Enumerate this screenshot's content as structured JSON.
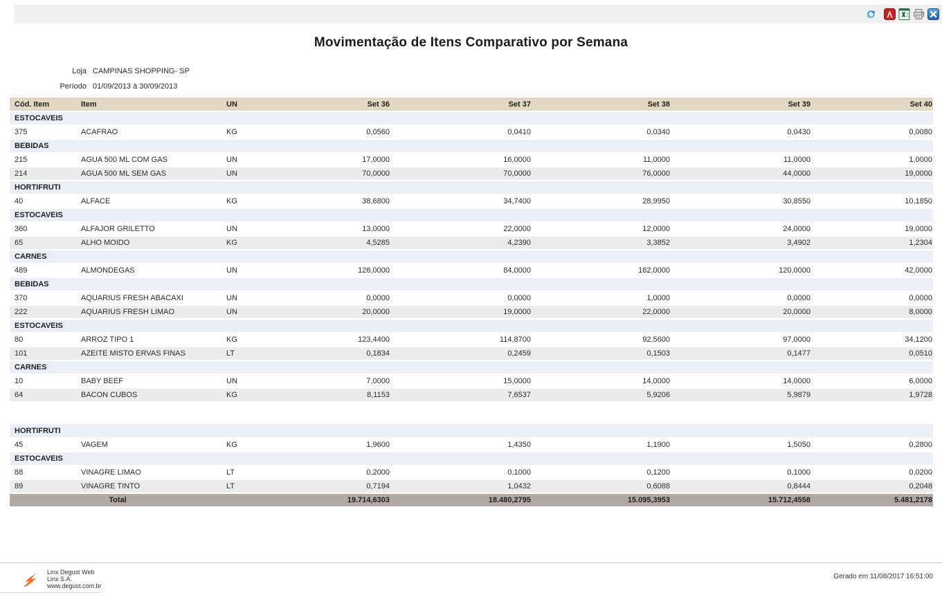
{
  "toolbar": {
    "icons": [
      {
        "name": "refresh"
      },
      {
        "name": "export-pdf"
      },
      {
        "name": "export-excel"
      },
      {
        "name": "print"
      },
      {
        "name": "close"
      }
    ]
  },
  "title": "Movimentação de Itens Comparativo por Semana",
  "meta": {
    "loja_label": "Loja",
    "loja_value": "CAMPINAS SHOPPING- SP",
    "periodo_label": "Período",
    "periodo_value": "01/09/2013 à 30/09/2013"
  },
  "table": {
    "columns": [
      "Cód. Item",
      "Item",
      "UN",
      "Set 36",
      "Set 37",
      "Set 38",
      "Set 39",
      "Set 40"
    ],
    "rows": [
      {
        "type": "category",
        "label": "ESTOCAVEIS"
      },
      {
        "type": "item",
        "cod": "375",
        "item": "ACAFRAO",
        "un": "KG",
        "values": [
          "0,0560",
          "0,0410",
          "0,0340",
          "0,0430",
          "0,0080"
        ]
      },
      {
        "type": "category",
        "label": "BEBIDAS"
      },
      {
        "type": "item",
        "cod": "215",
        "item": "AGUA 500 ML COM GAS",
        "un": "UN",
        "values": [
          "17,0000",
          "16,0000",
          "11,0000",
          "11,0000",
          "1,0000"
        ]
      },
      {
        "type": "item",
        "cod": "214",
        "item": "AGUA 500 ML SEM GAS",
        "un": "UN",
        "values": [
          "70,0000",
          "70,0000",
          "76,0000",
          "44,0000",
          "19,0000"
        ]
      },
      {
        "type": "category",
        "label": "HORTIFRUTI"
      },
      {
        "type": "item",
        "cod": "40",
        "item": "ALFACE",
        "un": "KG",
        "values": [
          "38,6800",
          "34,7400",
          "28,9950",
          "30,8550",
          "10,1850"
        ]
      },
      {
        "type": "category",
        "label": "ESTOCAVEIS"
      },
      {
        "type": "item",
        "cod": "360",
        "item": "ALFAJOR GRILETTO",
        "un": "UN",
        "values": [
          "13,0000",
          "22,0000",
          "12,0000",
          "24,0000",
          "19,0000"
        ]
      },
      {
        "type": "item",
        "cod": "65",
        "item": "ALHO MOIDO",
        "un": "KG",
        "values": [
          "4,5285",
          "4,2390",
          "3,3852",
          "3,4902",
          "1,2304"
        ]
      },
      {
        "type": "category",
        "label": "CARNES"
      },
      {
        "type": "item",
        "cod": "489",
        "item": "ALMONDEGAS",
        "un": "UN",
        "values": [
          "126,0000",
          "84,0000",
          "162,0000",
          "120,0000",
          "42,0000"
        ]
      },
      {
        "type": "category",
        "label": "BEBIDAS"
      },
      {
        "type": "item",
        "cod": "370",
        "item": "AQUARIUS FRESH ABACAXI",
        "un": "UN",
        "values": [
          "0,0000",
          "0,0000",
          "1,0000",
          "0,0000",
          "0,0000"
        ]
      },
      {
        "type": "item",
        "cod": "222",
        "item": "AQUARIUS FRESH LIMAO",
        "un": "UN",
        "values": [
          "20,0000",
          "19,0000",
          "22,0000",
          "20,0000",
          "8,0000"
        ]
      },
      {
        "type": "category",
        "label": "ESTOCAVEIS"
      },
      {
        "type": "item",
        "cod": "80",
        "item": "ARROZ TIPO 1",
        "un": "KG",
        "values": [
          "123,4400",
          "114,8700",
          "92,5600",
          "97,0000",
          "34,1200"
        ]
      },
      {
        "type": "item",
        "cod": "101",
        "item": "AZEITE MISTO ERVAS FINAS",
        "un": "LT",
        "values": [
          "0,1834",
          "0,2459",
          "0,1503",
          "0,1477",
          "0,0510"
        ]
      },
      {
        "type": "category",
        "label": "CARNES"
      },
      {
        "type": "item",
        "cod": "10",
        "item": "BABY BEEF",
        "un": "UN",
        "values": [
          "7,0000",
          "15,0000",
          "14,0000",
          "14,0000",
          "6,0000"
        ]
      },
      {
        "type": "item",
        "cod": "64",
        "item": "BACON CUBOS",
        "un": "KG",
        "values": [
          "8,1153",
          "7,6537",
          "5,9206",
          "5,9879",
          "1,9728"
        ]
      },
      {
        "type": "gap"
      },
      {
        "type": "category",
        "label": "HORTIFRUTI"
      },
      {
        "type": "item",
        "cod": "45",
        "item": "VAGEM",
        "un": "KG",
        "values": [
          "1,9600",
          "1,4350",
          "1,1900",
          "1,5050",
          "0,2800"
        ]
      },
      {
        "type": "category",
        "label": "ESTOCAVEIS"
      },
      {
        "type": "item",
        "cod": "88",
        "item": "VINAGRE LIMAO",
        "un": "LT",
        "values": [
          "0,2000",
          "0,1000",
          "0,1200",
          "0,1000",
          "0,0200"
        ]
      },
      {
        "type": "item",
        "cod": "89",
        "item": "VINAGRE TINTO",
        "un": "LT",
        "values": [
          "0,7194",
          "1,0432",
          "0,6088",
          "0,8444",
          "0,2048"
        ]
      }
    ],
    "total": {
      "label": "Total",
      "values": [
        "19.714,6303",
        "18.480,2795",
        "15.095,3953",
        "15.712,4558",
        "5.481,2178"
      ]
    }
  },
  "footer": {
    "app_name": "Linx Degust Web",
    "company": "Linx S.A.",
    "website": "www.degust.com.br",
    "generated": "Gerado em 11/08/2017 16:51:00"
  },
  "colors": {
    "header_bg": "#e3d9c3",
    "category_bg": "#ebeff7",
    "alt_row_bg": "#ececec",
    "total_bg": "#b2a9a4",
    "toolbar_bg": "#f0f0f0",
    "refresh_blue": "#2a8fd8",
    "pdf_red": "#cc1f1f",
    "excel_green": "#217346",
    "close_blue": "#2a7fd4",
    "logo_orange": "#f58220",
    "logo_red": "#e8392b"
  }
}
